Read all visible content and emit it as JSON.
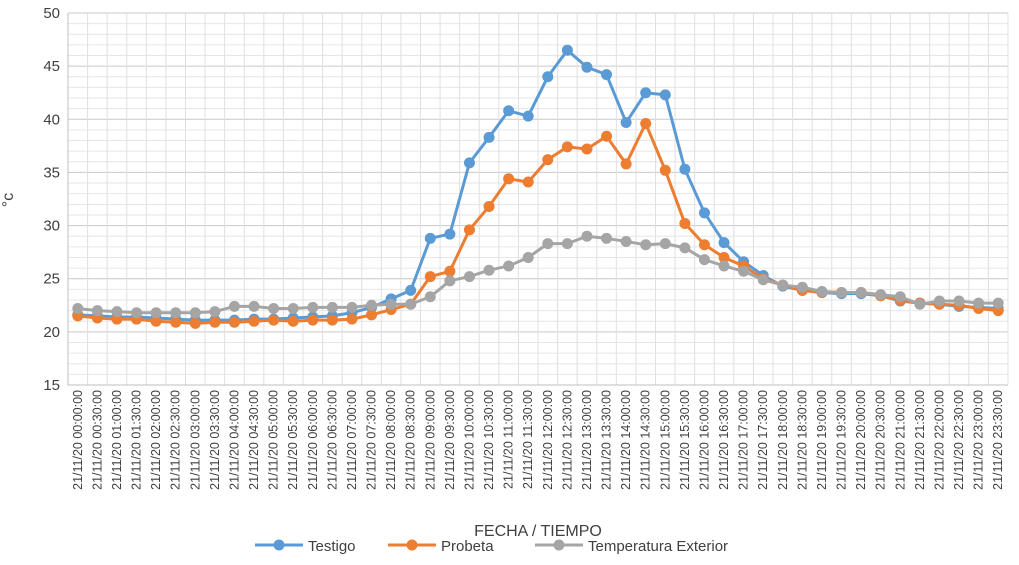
{
  "chart_data": {
    "type": "line",
    "title": "",
    "xlabel": "FECHA / TIEMPO",
    "ylabel": "°c",
    "ylim": [
      15,
      50
    ],
    "yticks": [
      15,
      20,
      25,
      30,
      35,
      40,
      45,
      50
    ],
    "grid": true,
    "legend_position": "bottom",
    "x": [
      "21/11/20 00:00:00",
      "21/11/20 00:30:00",
      "21/11/20 01:00:00",
      "21/11/20 01:30:00",
      "21/11/20 02:00:00",
      "21/11/20 02:30:00",
      "21/11/20 03:00:00",
      "21/11/20 03:30:00",
      "21/11/20 04:00:00",
      "21/11/20 04:30:00",
      "21/11/20 05:00:00",
      "21/11/20 05:30:00",
      "21/11/20 06:00:00",
      "21/11/20 06:30:00",
      "21/11/20 07:00:00",
      "21/11/20 07:30:00",
      "21/11/20 08:00:00",
      "21/11/20 08:30:00",
      "21/11/20 09:00:00",
      "21/11/20 09:30:00",
      "21/11/20 10:00:00",
      "21/11/20 10:30:00",
      "21/11/20 11:00:00",
      "21/11/20 11:30:00",
      "21/11/20 12:00:00",
      "21/11/20 12:30:00",
      "21/11/20 13:00:00",
      "21/11/20 13:30:00",
      "21/11/20 14:00:00",
      "21/11/20 14:30:00",
      "21/11/20 15:00:00",
      "21/11/20 15:30:00",
      "21/11/20 16:00:00",
      "21/11/20 16:30:00",
      "21/11/20 17:00:00",
      "21/11/20 17:30:00",
      "21/11/20 18:00:00",
      "21/11/20 18:30:00",
      "21/11/20 19:00:00",
      "21/11/20 19:30:00",
      "21/11/20 20:00:00",
      "21/11/20 20:30:00",
      "21/11/20 21:00:00",
      "21/11/20 21:30:00",
      "21/11/20 22:00:00",
      "21/11/20 22:30:00",
      "21/11/20 23:00:00",
      "21/11/20 23:30:00"
    ],
    "x_tick_labels": [
      "21/11/20 00:00:00",
      "21/11/20 00:30:00",
      "21/11/20 01:00:00",
      "21/11/20 01:30:00",
      "21/11/20 02:00:00",
      "21/11/20 02:30:00",
      "21/11/20 03:00:00",
      "21/11/20 03:30:00",
      "21/11/20 04:00:00",
      "21/11/20 04:30:00",
      "21/11/20 05:00:00",
      "21/11/20 05:30:00",
      "21/11/20 06:00:00",
      "21/11/20 06:30:00",
      "21/11/20 07:00:00",
      "21/11/20 07:30:00",
      "21/11/20 08:00:00",
      "21/11/20 08:30:00",
      "21/11/20 09:00:00",
      "21/11/20 09:30:00",
      "21/11/20 10:00:00",
      "21/11/20 10:30:00",
      "21/11/20 11:00:00",
      "21/11/20 11:30:00",
      "21/11/20 12:00:00",
      "21/11/20 12:30:00",
      "21/11/20 13:00:00",
      "21/11/20 13:30:00",
      "21/11/20 14:00:00",
      "21/11/20 14:30:00",
      "21/11/20 15:00:00",
      "21/11/20 15:30:00",
      "21/11/20 16:00:00",
      "21/11/20 16:30:00",
      "21/11/20 17:00:00",
      "21/11/20 17:30:00",
      "21/11/20 18:00:00",
      "21/11/20 18:30:00",
      "21/11/20 19:00:00",
      "21/11/20 19:30:00",
      "21/11/20 20:00:00",
      "21/11/20 20:30:00",
      "21/11/20 21:00:00",
      "21/11/20 21:30:00",
      "21/11/20 22:00:00",
      "21/11/20 22:30:00",
      "21/11/20 23:00:00",
      "21/11/20 23:30:00"
    ],
    "series": [
      {
        "name": "Testigo",
        "color": "#5B9BD5",
        "values": [
          21.6,
          21.5,
          21.4,
          21.4,
          21.3,
          21.2,
          21.1,
          21.1,
          21.1,
          21.2,
          21.2,
          21.3,
          21.4,
          21.5,
          21.8,
          22.3,
          23.1,
          23.9,
          28.8,
          29.2,
          35.9,
          38.3,
          40.8,
          40.3,
          44.0,
          46.5,
          44.9,
          44.2,
          39.7,
          42.5,
          42.3,
          35.3,
          31.2,
          28.4,
          26.6,
          25.3,
          24.3,
          23.9,
          23.7,
          23.6,
          23.6,
          23.4,
          22.9,
          22.7,
          22.6,
          22.4,
          22.3,
          22.2
        ]
      },
      {
        "name": "Probeta",
        "color": "#ED7D31",
        "values": [
          21.5,
          21.3,
          21.2,
          21.2,
          21.0,
          20.9,
          20.8,
          20.9,
          20.9,
          21.0,
          21.1,
          21.0,
          21.1,
          21.1,
          21.2,
          21.6,
          22.1,
          22.6,
          25.2,
          25.7,
          29.6,
          31.8,
          34.4,
          34.1,
          36.2,
          37.4,
          37.2,
          38.4,
          35.8,
          39.6,
          35.2,
          30.2,
          28.2,
          27.0,
          26.2,
          25.0,
          24.4,
          23.9,
          23.7,
          23.7,
          23.7,
          23.4,
          23.0,
          22.7,
          22.6,
          22.5,
          22.2,
          22.0
        ]
      },
      {
        "name": "Temperatura Exterior",
        "color": "#A5A5A5",
        "values": [
          22.2,
          22.0,
          21.9,
          21.8,
          21.8,
          21.8,
          21.8,
          21.9,
          22.4,
          22.4,
          22.2,
          22.2,
          22.3,
          22.3,
          22.3,
          22.5,
          22.6,
          22.6,
          23.3,
          24.8,
          25.2,
          25.8,
          26.2,
          27.0,
          28.3,
          28.3,
          29.0,
          28.8,
          28.5,
          28.2,
          28.3,
          27.9,
          26.8,
          26.2,
          25.7,
          24.9,
          24.4,
          24.2,
          23.8,
          23.7,
          23.7,
          23.5,
          23.3,
          22.6,
          22.9,
          22.9,
          22.7,
          22.7
        ]
      }
    ]
  }
}
